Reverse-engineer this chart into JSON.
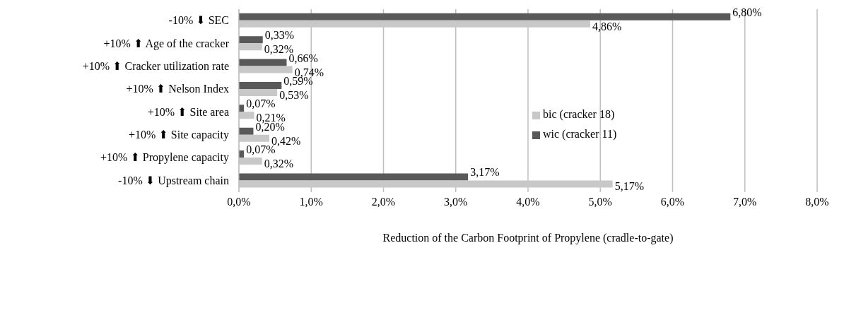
{
  "chart_data": {
    "type": "bar",
    "orientation": "horizontal",
    "xlabel": "Reduction of the Carbon Footprint of Propylene (cradle-to-gate)",
    "categories": [
      "-10% ⬇  SEC",
      "+10% ⬆  Age of the cracker",
      "+10% ⬆  Cracker utilization rate",
      "+10% ⬆  Nelson Index",
      "+10% ⬆  Site area",
      "+10% ⬆  Site capacity",
      "+10% ⬆  Propylene capacity",
      "-10% ⬇  Upstream chain"
    ],
    "series": [
      {
        "name": "wic (cracker 11)",
        "color": "#595959",
        "values": [
          6.8,
          0.33,
          0.66,
          0.59,
          0.07,
          0.2,
          0.07,
          3.17
        ],
        "value_labels": [
          "6,80%",
          "0,33%",
          "0,66%",
          "0,59%",
          "0,07%",
          "0,20%",
          "0,07%",
          "3,17%"
        ]
      },
      {
        "name": "bic (cracker 18)",
        "color": "#c8c8c8",
        "values": [
          4.86,
          0.32,
          0.74,
          0.53,
          0.21,
          0.42,
          0.32,
          5.17
        ],
        "value_labels": [
          "4,86%",
          "0,32%",
          "0,74%",
          "0,53%",
          "0,21%",
          "0,42%",
          "0,32%",
          "5,17%"
        ]
      }
    ],
    "xlim": [
      0,
      8
    ],
    "xticks": [
      {
        "value": 0,
        "label": "0,0%"
      },
      {
        "value": 1,
        "label": "1,0%"
      },
      {
        "value": 2,
        "label": "2,0%"
      },
      {
        "value": 3,
        "label": "3,0%"
      },
      {
        "value": 4,
        "label": "4,0%"
      },
      {
        "value": 5,
        "label": "5,0%"
      },
      {
        "value": 6,
        "label": "6,0%"
      },
      {
        "value": 7,
        "label": "7,0%"
      },
      {
        "value": 8,
        "label": "8,0%"
      }
    ],
    "grid": "x",
    "legend": "right"
  }
}
